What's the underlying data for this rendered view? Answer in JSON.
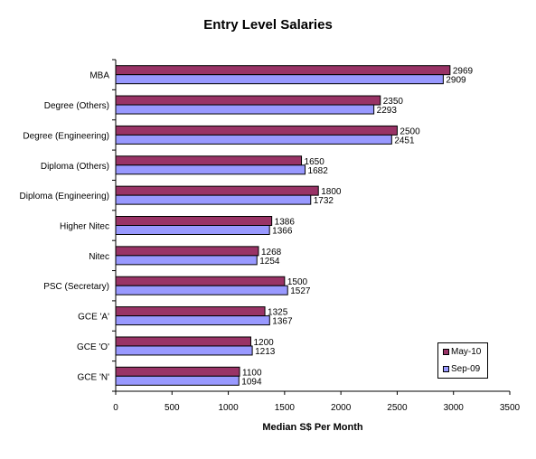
{
  "chart_data": {
    "type": "bar",
    "orientation": "horizontal",
    "title": "Entry Level Salaries",
    "xlabel": "Median S$ Per Month",
    "ylabel": "",
    "xlim": [
      0,
      3500
    ],
    "xticks": [
      "0",
      "500",
      "1000",
      "1500",
      "2000",
      "2500",
      "3000",
      "3500"
    ],
    "categories": [
      "MBA",
      "Degree (Others)",
      "Degree (Engineering)",
      "Diploma (Others)",
      "Diploma (Engineering)",
      "Higher Nitec",
      "Nitec",
      "PSC (Secretary)",
      "GCE 'A'",
      "GCE 'O'",
      "GCE 'N'"
    ],
    "series": [
      {
        "name": "May-10",
        "color": "#993366",
        "values": [
          2969,
          2350,
          2500,
          1650,
          1800,
          1386,
          1268,
          1500,
          1325,
          1200,
          1100
        ]
      },
      {
        "name": "Sep-09",
        "color": "#9999ff",
        "values": [
          2909,
          2293,
          2451,
          1682,
          1732,
          1366,
          1254,
          1527,
          1367,
          1213,
          1094
        ]
      }
    ],
    "legend": "bottom-right",
    "grid": false,
    "data_labels": true
  }
}
